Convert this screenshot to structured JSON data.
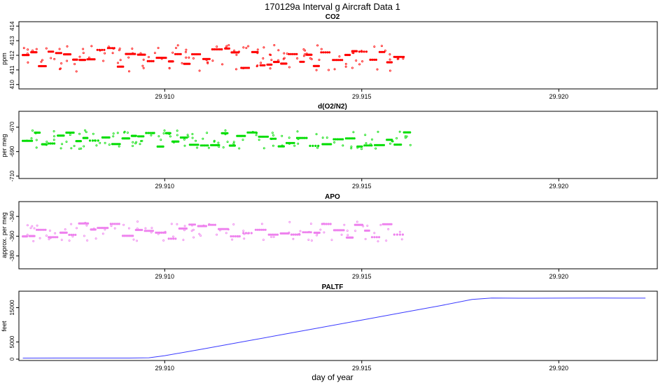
{
  "page": {
    "title": "170129a   Interval g Aircraft Data 1",
    "xlabel": "day of year"
  },
  "colors": {
    "co2": "#ff0000",
    "o2n2": "#00dd00",
    "apo": "#ee82ee",
    "paltf": "#3a3aff",
    "axis": "#000000"
  },
  "chart_data": [
    {
      "type": "scatter",
      "title": "CO2",
      "ylabel": "ppm",
      "xlim": [
        29.9063,
        29.9225
      ],
      "ylim": [
        409.7,
        414.3
      ],
      "x_ticks": [
        29.91,
        29.915,
        29.92
      ],
      "x_tick_labels": [
        "29.910",
        "29.915",
        "29.920"
      ],
      "y_ticks": [
        410,
        411,
        412,
        413,
        414
      ],
      "y_tick_labels": [
        "410",
        "411",
        "412",
        "413",
        "414"
      ],
      "x_range_data": [
        29.9064,
        29.9161
      ],
      "y_mean": 411.8,
      "y_spread": 0.7
    },
    {
      "type": "scatter",
      "title": "d(O2/N2)",
      "ylabel": "per meg",
      "xlim": [
        29.9063,
        29.9225
      ],
      "ylim": [
        -712,
        -657
      ],
      "x_ticks": [
        29.91,
        29.915,
        29.92
      ],
      "x_tick_labels": [
        "29.910",
        "29.915",
        "29.920"
      ],
      "y_ticks": [
        -670,
        -690,
        -710
      ],
      "y_tick_labels": [
        "-670",
        "-690",
        "-710"
      ],
      "x_range_data": [
        29.9064,
        29.9161
      ],
      "y_mean": -680,
      "y_spread": 6
    },
    {
      "type": "scatter",
      "title": "APO",
      "ylabel": "approx. per meg",
      "xlim": [
        29.9063,
        29.9225
      ],
      "ylim": [
        -393,
        -325
      ],
      "x_ticks": [
        29.91,
        29.915,
        29.92
      ],
      "x_tick_labels": [
        "29.910",
        "29.915",
        "29.920"
      ],
      "y_ticks": [
        -340,
        -360,
        -380
      ],
      "y_tick_labels": [
        "-340",
        "-360",
        "-380"
      ],
      "x_range_data": [
        29.9064,
        29.9161
      ],
      "y_mean": -355,
      "y_spread": 8
    },
    {
      "type": "line",
      "title": "PALTF",
      "ylabel": "feet",
      "xlim": [
        29.9063,
        29.9225
      ],
      "ylim": [
        -400,
        19800
      ],
      "x_ticks": [
        29.91,
        29.915,
        29.92
      ],
      "x_tick_labels": [
        "29.910",
        "29.915",
        "29.920"
      ],
      "y_ticks": [
        0,
        5000,
        15000
      ],
      "y_tick_labels": [
        "0",
        "5000",
        "15000"
      ],
      "x": [
        29.9064,
        29.9073,
        29.9082,
        29.9091,
        29.9096,
        29.91,
        29.911,
        29.912,
        29.913,
        29.914,
        29.915,
        29.916,
        29.917,
        29.9178,
        29.9183,
        29.919,
        29.92,
        29.921,
        29.9222
      ],
      "y": [
        300,
        320,
        310,
        320,
        400,
        1000,
        3000,
        5100,
        7200,
        9300,
        11400,
        13500,
        15600,
        17400,
        17800,
        17750,
        17780,
        17800,
        17790
      ]
    }
  ]
}
